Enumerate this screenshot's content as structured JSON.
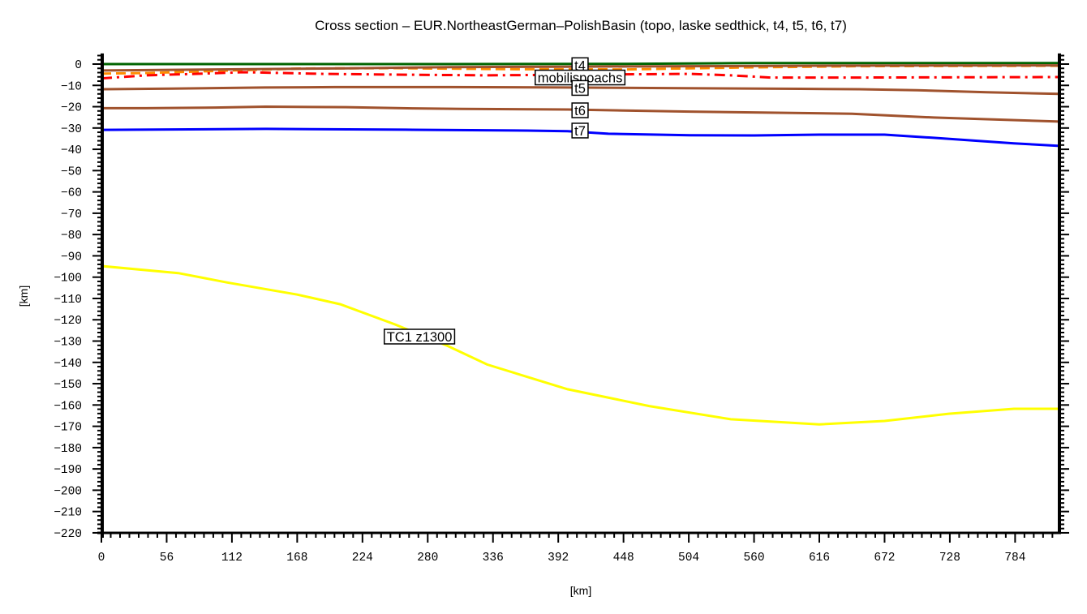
{
  "chart_data": {
    "type": "line",
    "title": "Cross section – EUR.NortheastGerman–PolishBasin (topo, laske sedthick, t4, t5, t6, t7)",
    "xlabel": "[km]",
    "ylabel": "[km]",
    "xlim": [
      0,
      822
    ],
    "ylim": [
      -220,
      5
    ],
    "grid": false,
    "legend_position": "inline labels",
    "x_ticks": {
      "major_step": 56,
      "minor_step": 8,
      "labels": [
        "0",
        "56",
        "112",
        "168",
        "224",
        "280",
        "336",
        "392",
        "448",
        "504",
        "560",
        "616",
        "672",
        "728",
        "784"
      ]
    },
    "y_ticks": {
      "major_step": 10,
      "minor_step": 2,
      "labels": [
        "0",
        "−10",
        "−20",
        "−30",
        "−40",
        "−50",
        "−60",
        "−70",
        "−80",
        "−90",
        "−100",
        "−110",
        "−120",
        "−130",
        "−140",
        "−150",
        "−160",
        "−170",
        "−180",
        "−190",
        "−200",
        "−210",
        "−220"
      ]
    },
    "series": [
      {
        "name": "topo",
        "color": "#006400",
        "style": "solid",
        "label": null,
        "points": [
          [
            0,
            0
          ],
          [
            150,
            0
          ],
          [
            300,
            0
          ],
          [
            450,
            0.1
          ],
          [
            540,
            0.4
          ],
          [
            560,
            0.5
          ],
          [
            822,
            0.5
          ]
        ]
      },
      {
        "name": "laske sedthick",
        "color": "#ff8c00",
        "style": "dashed",
        "label": null,
        "points": [
          [
            0,
            -4.5
          ],
          [
            40,
            -4.2
          ],
          [
            100,
            -3.2
          ],
          [
            170,
            -2.1
          ],
          [
            250,
            -1.9
          ],
          [
            350,
            -2.4
          ],
          [
            450,
            -2.5
          ],
          [
            550,
            -1.6
          ],
          [
            650,
            -1.0
          ],
          [
            822,
            -0.8
          ]
        ]
      },
      {
        "name": "t4",
        "color": "#a0522d",
        "style": "solid",
        "label": {
          "text": "t4",
          "x": 410.7,
          "y": -0.5
        },
        "points": [
          [
            0,
            -3.0
          ],
          [
            60,
            -2.7
          ],
          [
            150,
            -2.3
          ],
          [
            210,
            -2.0
          ],
          [
            300,
            -1.4
          ],
          [
            400,
            -1.2
          ],
          [
            500,
            -1.0
          ],
          [
            600,
            -0.8
          ],
          [
            700,
            -0.7
          ],
          [
            822,
            -0.6
          ]
        ]
      },
      {
        "name": "mobilispoachs",
        "color": "#ff0000",
        "style": "dashdot",
        "label": {
          "text": "mobilispoachs",
          "x": 410.7,
          "y": -6.3
        },
        "points": [
          [
            0,
            -6.7
          ],
          [
            38,
            -5.3
          ],
          [
            80,
            -4.6
          ],
          [
            122,
            -3.8
          ],
          [
            191,
            -4.6
          ],
          [
            261,
            -5.0
          ],
          [
            331,
            -5.3
          ],
          [
            400,
            -5.0
          ],
          [
            505,
            -4.6
          ],
          [
            540,
            -5.3
          ],
          [
            574,
            -6.3
          ],
          [
            650,
            -6.3
          ],
          [
            822,
            -6.1
          ]
        ]
      },
      {
        "name": "t5",
        "color": "#a0522d",
        "style": "solid",
        "label": {
          "text": "t5",
          "x": 410.7,
          "y": -11.2
        },
        "points": [
          [
            0,
            -11.8
          ],
          [
            60,
            -11.5
          ],
          [
            140,
            -11.0
          ],
          [
            200,
            -10.8
          ],
          [
            300,
            -10.8
          ],
          [
            400,
            -11.0
          ],
          [
            500,
            -11.3
          ],
          [
            600,
            -11.6
          ],
          [
            650,
            -11.8
          ],
          [
            700,
            -12.3
          ],
          [
            760,
            -13.2
          ],
          [
            822,
            -14.0
          ]
        ]
      },
      {
        "name": "t6",
        "color": "#a0522d",
        "style": "solid",
        "label": {
          "text": "t6",
          "x": 410.7,
          "y": -21.7
        },
        "points": [
          [
            0,
            -20.7
          ],
          [
            38,
            -20.7
          ],
          [
            98,
            -20.4
          ],
          [
            141,
            -20.0
          ],
          [
            210,
            -20.2
          ],
          [
            268,
            -20.8
          ],
          [
            309,
            -21.0
          ],
          [
            400,
            -21.3
          ],
          [
            505,
            -22.3
          ],
          [
            644,
            -23.3
          ],
          [
            714,
            -25.1
          ],
          [
            822,
            -27.0
          ]
        ]
      },
      {
        "name": "t7",
        "color": "#0000ff",
        "style": "solid",
        "label": {
          "text": "t7",
          "x": 410.7,
          "y": -31.2
        },
        "points": [
          [
            0,
            -30.9
          ],
          [
            141,
            -30.4
          ],
          [
            261,
            -30.8
          ],
          [
            365,
            -31.2
          ],
          [
            400,
            -31.5
          ],
          [
            435,
            -32.7
          ],
          [
            505,
            -33.4
          ],
          [
            560,
            -33.5
          ],
          [
            616,
            -33.1
          ],
          [
            672,
            -33.1
          ],
          [
            714,
            -34.6
          ],
          [
            783,
            -37.2
          ],
          [
            822,
            -38.4
          ]
        ]
      },
      {
        "name": "TC1 z1300",
        "color": "#ffff00",
        "style": "solid",
        "label": {
          "text": "TC1  z1300",
          "x": 272.9,
          "y": -127.9
        },
        "points": [
          [
            0,
            -94.8
          ],
          [
            66,
            -98.1
          ],
          [
            108,
            -102.5
          ],
          [
            168,
            -108.2
          ],
          [
            205,
            -112.7
          ],
          [
            252,
            -122.2
          ],
          [
            296,
            -132.0
          ],
          [
            331,
            -141.0
          ],
          [
            400,
            -152.6
          ],
          [
            470,
            -160.5
          ],
          [
            540,
            -166.7
          ],
          [
            616,
            -169.1
          ],
          [
            672,
            -167.5
          ],
          [
            727,
            -164.1
          ],
          [
            783,
            -161.8
          ],
          [
            822,
            -161.8
          ]
        ]
      }
    ]
  }
}
